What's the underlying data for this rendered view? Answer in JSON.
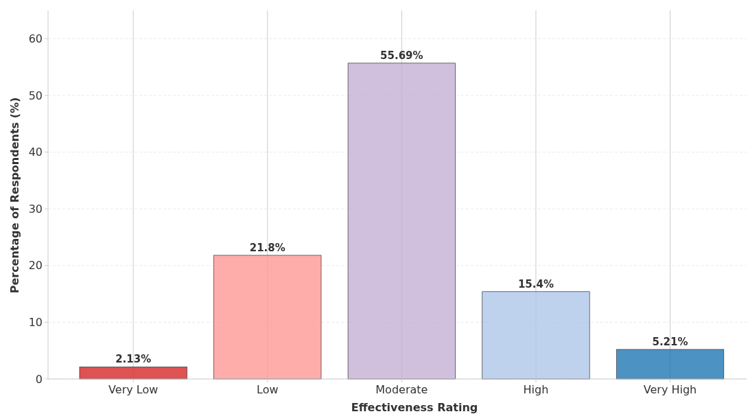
{
  "chart_data": {
    "type": "bar",
    "xlabel": "Effectiveness Rating",
    "ylabel": "Percentage of Respondents (%)",
    "categories": [
      "Very Low",
      "Low",
      "Moderate",
      "High",
      "Very High"
    ],
    "values": [
      2.13,
      21.8,
      55.69,
      15.4,
      5.21
    ],
    "colors": [
      "#d62728",
      "#ff9896",
      "#c5b0d5",
      "#aec7e8",
      "#1f77b4"
    ],
    "value_labels": [
      "2.13%",
      "21.8%",
      "55.69%",
      "15.4%",
      "5.21%"
    ],
    "ylim": [
      0,
      65
    ],
    "yticks": [
      0,
      10,
      20,
      30,
      40,
      50,
      60
    ],
    "grid": true
  }
}
